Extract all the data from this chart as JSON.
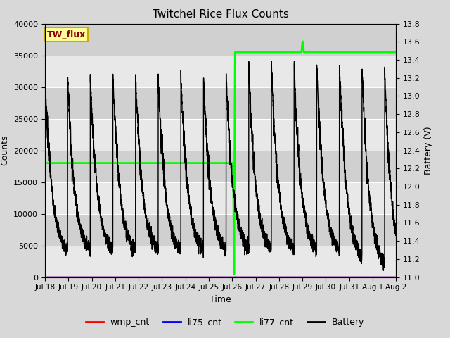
{
  "title": "Twitchel Rice Flux Counts",
  "xlabel": "Time",
  "ylabel_left": "Counts",
  "ylabel_right": "Battery (V)",
  "ylim_left": [
    0,
    40000
  ],
  "ylim_right": [
    11.0,
    13.8
  ],
  "yticks_left": [
    0,
    5000,
    10000,
    15000,
    20000,
    25000,
    30000,
    35000,
    40000
  ],
  "yticks_right": [
    11.0,
    11.2,
    11.4,
    11.6,
    11.8,
    12.0,
    12.2,
    12.4,
    12.6,
    12.8,
    13.0,
    13.2,
    13.4,
    13.6,
    13.8
  ],
  "total_days": 15.5,
  "xtick_labels": [
    "Jul 18",
    "Jul 19",
    "Jul 20",
    "Jul 21",
    "Jul 22",
    "Jul 23",
    "Jul 24",
    "Jul 25",
    "Jul 26",
    "Jul 27",
    "Jul 28",
    "Jul 29",
    "Jul 30",
    "Jul 31",
    "Aug 1",
    "Aug 2"
  ],
  "fig_bg_color": "#d8d8d8",
  "plot_bg_light": "#e8e8e8",
  "plot_bg_dark": "#d0d0d0",
  "battery_color": "#000000",
  "li77_color": "#00ff00",
  "li75_color": "#0000ff",
  "wmp_color": "#ff0000",
  "grid_color": "#ffffff",
  "legend_entries": [
    "wmp_cnt",
    "li75_cnt",
    "li77_cnt",
    "Battery"
  ],
  "legend_colors": [
    "#ff0000",
    "#0000ff",
    "#00ff00",
    "#000000"
  ],
  "annotation_text": "TW_flux",
  "annotation_color": "#8b0000",
  "annotation_bg": "#ffff99",
  "annotation_border": "#ccaa00",
  "n_points": 4000,
  "li77_low": 18000,
  "li77_high": 35500,
  "li77_step_day": 8.35,
  "li77_spike_day": 11.35,
  "li77_spike_val": 37200,
  "batt_peak_phase1": 13.22,
  "batt_trough_phase1": 11.22,
  "batt_peak_phase2": 13.35,
  "batt_trough_phase2": 11.22,
  "batt_noise": 0.04
}
